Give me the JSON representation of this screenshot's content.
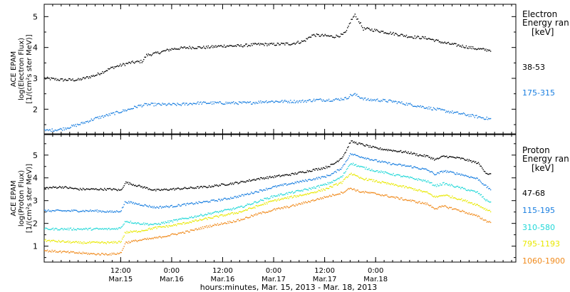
{
  "chart_data": [
    {
      "type": "scatter",
      "ylabel_lines": [
        "ACE EPAM",
        "log(Electron Flux)",
        "[1/(cm²s ster MeV)]"
      ],
      "ylim": [
        1.2,
        5.4
      ],
      "yticks": [
        2,
        3,
        4,
        5
      ],
      "xlim": [
        -18,
        93
      ],
      "legend_title_lines": [
        "Electron",
        "Energy ran",
        "[keV]"
      ],
      "series": [
        {
          "name": "38-53",
          "color": "#000000",
          "x": [
            -18,
            -14,
            -10,
            -6,
            -2,
            2,
            5,
            6,
            8,
            12,
            16,
            20,
            24,
            28,
            32,
            36,
            40,
            43,
            45,
            48,
            50,
            52,
            53,
            54,
            55,
            56,
            57,
            58,
            60,
            64,
            68,
            72,
            76,
            80,
            84,
            86,
            87
          ],
          "y": [
            3.0,
            2.95,
            2.95,
            3.1,
            3.35,
            3.5,
            3.55,
            3.75,
            3.8,
            3.95,
            4.0,
            4.0,
            4.05,
            4.05,
            4.1,
            4.1,
            4.12,
            4.2,
            4.4,
            4.38,
            4.35,
            4.4,
            4.5,
            4.85,
            5.05,
            4.85,
            4.6,
            4.6,
            4.55,
            4.45,
            4.35,
            4.3,
            4.15,
            4.05,
            3.95,
            3.92,
            3.92
          ]
        },
        {
          "name": "175-315",
          "color": "#1a7fe0",
          "x": [
            -18,
            -14,
            -10,
            -6,
            -2,
            2,
            4,
            6,
            10,
            14,
            18,
            22,
            26,
            30,
            34,
            38,
            42,
            46,
            50,
            53,
            54,
            55,
            56,
            58,
            60,
            64,
            68,
            72,
            76,
            80,
            84,
            86,
            87
          ],
          "y": [
            1.3,
            1.35,
            1.5,
            1.7,
            1.85,
            2.0,
            2.1,
            2.15,
            2.15,
            2.15,
            2.2,
            2.2,
            2.2,
            2.2,
            2.25,
            2.25,
            2.25,
            2.3,
            2.3,
            2.35,
            2.45,
            2.48,
            2.4,
            2.3,
            2.3,
            2.25,
            2.15,
            2.05,
            1.95,
            1.85,
            1.75,
            1.7,
            1.68
          ]
        }
      ]
    },
    {
      "type": "scatter",
      "ylabel_lines": [
        "ACE EPAM",
        "log(Proton Flux)",
        "[1/(cm²s ster MeV)]"
      ],
      "ylim": [
        0.3,
        5.9
      ],
      "yticks": [
        1,
        2,
        3,
        4,
        5
      ],
      "xlim": [
        -18,
        93
      ],
      "legend_title_lines": [
        "Proton",
        "Energy ran",
        "[keV]"
      ],
      "series": [
        {
          "name": "47-68",
          "color": "#000000",
          "x": [
            -18,
            -14,
            -10,
            -6,
            -2,
            0,
            1,
            4,
            8,
            12,
            16,
            20,
            24,
            28,
            32,
            36,
            40,
            44,
            48,
            50,
            52,
            53,
            54,
            56,
            60,
            64,
            68,
            70,
            72,
            74,
            76,
            80,
            84,
            86,
            87
          ],
          "y": [
            3.55,
            3.6,
            3.5,
            3.5,
            3.5,
            3.45,
            3.8,
            3.65,
            3.45,
            3.5,
            3.55,
            3.6,
            3.7,
            3.8,
            3.95,
            4.05,
            4.15,
            4.3,
            4.45,
            4.6,
            4.9,
            5.2,
            5.6,
            5.5,
            5.3,
            5.2,
            5.1,
            5.0,
            4.95,
            4.8,
            4.95,
            4.85,
            4.65,
            4.2,
            4.15
          ]
        },
        {
          "name": "115-195",
          "color": "#1a7fe0",
          "x": [
            -18,
            -14,
            -10,
            -6,
            -2,
            0,
            1,
            4,
            8,
            12,
            16,
            20,
            24,
            28,
            32,
            36,
            40,
            44,
            48,
            50,
            52,
            53,
            54,
            56,
            60,
            64,
            68,
            72,
            74,
            76,
            80,
            84,
            86,
            87
          ],
          "y": [
            2.55,
            2.55,
            2.55,
            2.55,
            2.5,
            2.55,
            2.95,
            2.85,
            2.7,
            2.75,
            2.85,
            2.95,
            3.05,
            3.2,
            3.4,
            3.6,
            3.75,
            3.9,
            4.05,
            4.2,
            4.45,
            4.75,
            5.05,
            4.95,
            4.75,
            4.6,
            4.5,
            4.35,
            4.15,
            4.3,
            4.15,
            3.95,
            3.6,
            3.5
          ]
        },
        {
          "name": "310-580",
          "color": "#22d8d8",
          "x": [
            -18,
            -14,
            -10,
            -6,
            -2,
            0,
            1,
            4,
            8,
            12,
            16,
            20,
            24,
            28,
            32,
            36,
            40,
            44,
            48,
            50,
            52,
            53,
            54,
            56,
            60,
            64,
            68,
            72,
            74,
            76,
            80,
            84,
            86,
            87
          ],
          "y": [
            1.75,
            1.75,
            1.75,
            1.75,
            1.75,
            1.8,
            2.1,
            2.0,
            1.95,
            2.1,
            2.25,
            2.4,
            2.55,
            2.7,
            2.95,
            3.2,
            3.35,
            3.5,
            3.7,
            3.85,
            4.05,
            4.35,
            4.65,
            4.5,
            4.3,
            4.15,
            4.0,
            3.85,
            3.65,
            3.75,
            3.55,
            3.35,
            3.0,
            2.95
          ]
        },
        {
          "name": "795-1193",
          "color": "#e8e800",
          "x": [
            -18,
            -14,
            -10,
            -6,
            -2,
            0,
            1,
            4,
            8,
            12,
            16,
            20,
            24,
            28,
            32,
            36,
            40,
            44,
            48,
            50,
            52,
            53,
            54,
            56,
            60,
            64,
            68,
            72,
            74,
            76,
            80,
            84,
            86,
            87
          ],
          "y": [
            1.25,
            1.2,
            1.15,
            1.15,
            1.15,
            1.2,
            1.6,
            1.65,
            1.8,
            1.9,
            2.05,
            2.2,
            2.35,
            2.5,
            2.75,
            3.0,
            3.15,
            3.3,
            3.5,
            3.65,
            3.8,
            4.0,
            4.2,
            4.0,
            3.85,
            3.7,
            3.55,
            3.35,
            3.15,
            3.25,
            3.05,
            2.8,
            2.6,
            2.55
          ]
        },
        {
          "name": "1060-1900",
          "color": "#f08a1c",
          "x": [
            -18,
            -14,
            -10,
            -6,
            -2,
            0,
            1,
            4,
            8,
            12,
            16,
            20,
            24,
            28,
            32,
            36,
            40,
            44,
            48,
            50,
            52,
            53,
            54,
            56,
            60,
            64,
            68,
            72,
            74,
            76,
            80,
            84,
            86,
            87
          ],
          "y": [
            0.8,
            0.75,
            0.7,
            0.65,
            0.65,
            0.7,
            1.15,
            1.25,
            1.35,
            1.5,
            1.65,
            1.85,
            2.0,
            2.15,
            2.4,
            2.6,
            2.75,
            2.95,
            3.15,
            3.25,
            3.35,
            3.45,
            3.55,
            3.4,
            3.3,
            3.15,
            3.0,
            2.85,
            2.65,
            2.75,
            2.55,
            2.3,
            2.1,
            2.05
          ]
        }
      ]
    }
  ],
  "x_axis": {
    "ticks": [
      {
        "x": 0,
        "lines": [
          "12:00",
          "Mar.15"
        ]
      },
      {
        "x": 12,
        "lines": [
          "0:00",
          "Mar.16"
        ]
      },
      {
        "x": 24,
        "lines": [
          "12:00",
          "Mar.16"
        ]
      },
      {
        "x": 36,
        "lines": [
          "0:00",
          "Mar.17"
        ]
      },
      {
        "x": 48,
        "lines": [
          "12:00",
          "Mar.17"
        ]
      },
      {
        "x": 60,
        "lines": [
          "0:00",
          "Mar.18"
        ]
      }
    ],
    "minor_step": 2,
    "title": "hours:minutes, Mar. 15, 2013 - Mar. 18, 2013"
  }
}
